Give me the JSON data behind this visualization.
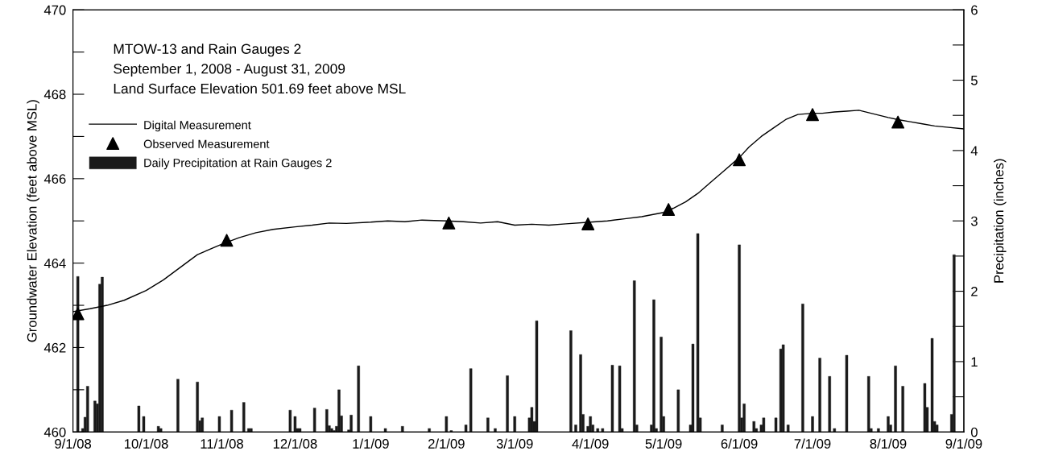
{
  "chart_data": {
    "type": "line",
    "ylabel": "Groundwater Elevation (feet above MSL)",
    "y2label": "Precipitation (inches)",
    "annotations": [
      "MTOW-13 and Rain Gauges 2",
      "September 1, 2008 - August 31, 2009",
      "Land Surface Elevation 501.69 feet above MSL"
    ],
    "xlim": [
      "2008-09-01",
      "2009-09-01"
    ],
    "xticks": [
      {
        "value": "2008-09-01",
        "label": "9/1/08"
      },
      {
        "value": "2008-10-01",
        "label": "10/1/08"
      },
      {
        "value": "2008-11-01",
        "label": "11/1/08"
      },
      {
        "value": "2008-12-01",
        "label": "12/1/08"
      },
      {
        "value": "2009-01-01",
        "label": "1/1/09"
      },
      {
        "value": "2009-02-01",
        "label": "2/1/09"
      },
      {
        "value": "2009-03-01",
        "label": "3/1/09"
      },
      {
        "value": "2009-04-01",
        "label": "4/1/09"
      },
      {
        "value": "2009-05-01",
        "label": "5/1/09"
      },
      {
        "value": "2009-06-01",
        "label": "6/1/09"
      },
      {
        "value": "2009-07-01",
        "label": "7/1/09"
      },
      {
        "value": "2009-08-01",
        "label": "8/1/09"
      },
      {
        "value": "2009-09-01",
        "label": "9/1/09"
      }
    ],
    "ylim": [
      460,
      470
    ],
    "yticks": [
      460,
      {
        "value": 461,
        "label": null
      },
      462,
      {
        "value": 463,
        "label": null
      },
      464,
      {
        "value": 465,
        "label": null
      },
      466,
      {
        "value": 467,
        "label": null
      },
      468,
      {
        "value": 469,
        "label": null
      },
      470
    ],
    "y2lim": [
      0,
      6
    ],
    "y2ticks": [
      0,
      {
        "value": 0.5,
        "label": null
      },
      1,
      {
        "value": 1.5,
        "label": null
      },
      2,
      {
        "value": 2.5,
        "label": null
      },
      3,
      {
        "value": 3.5,
        "label": null
      },
      4,
      {
        "value": 4.5,
        "label": null
      },
      5,
      {
        "value": 5.5,
        "label": null
      },
      6
    ],
    "grid": false,
    "legend": "top left",
    "series": [
      {
        "name": "Digital Measurement",
        "type": "line",
        "color": "#000000",
        "marker": "none",
        "line_style": "solid",
        "x": [
          "2008-09-01",
          "2008-09-08",
          "2008-09-15",
          "2008-09-22",
          "2008-10-01",
          "2008-10-08",
          "2008-10-15",
          "2008-10-22",
          "2008-11-01",
          "2008-11-08",
          "2008-11-15",
          "2008-11-22",
          "2008-12-01",
          "2008-12-08",
          "2008-12-15",
          "2008-12-22",
          "2009-01-01",
          "2009-01-08",
          "2009-01-15",
          "2009-01-22",
          "2009-02-01",
          "2009-02-08",
          "2009-02-15",
          "2009-02-22",
          "2009-03-01",
          "2009-03-08",
          "2009-03-15",
          "2009-03-22",
          "2009-04-01",
          "2009-04-08",
          "2009-04-15",
          "2009-04-22",
          "2009-05-01",
          "2009-05-05",
          "2009-05-10",
          "2009-05-15",
          "2009-05-20",
          "2009-05-25",
          "2009-06-01",
          "2009-06-05",
          "2009-06-10",
          "2009-06-15",
          "2009-06-20",
          "2009-06-25",
          "2009-07-01",
          "2009-07-05",
          "2009-07-10",
          "2009-07-15",
          "2009-07-20",
          "2009-07-25",
          "2009-08-01",
          "2009-08-05",
          "2009-08-10",
          "2009-08-15",
          "2009-08-20",
          "2009-08-25",
          "2009-09-01"
        ],
        "values": [
          462.85,
          462.92,
          463.0,
          463.12,
          463.35,
          463.6,
          463.9,
          464.2,
          464.45,
          464.6,
          464.72,
          464.8,
          464.86,
          464.9,
          464.95,
          464.94,
          464.97,
          465.0,
          464.98,
          465.02,
          465.0,
          464.98,
          464.95,
          464.98,
          464.9,
          464.92,
          464.9,
          464.93,
          464.97,
          465.0,
          465.05,
          465.1,
          465.2,
          465.3,
          465.45,
          465.65,
          465.9,
          466.15,
          466.5,
          466.75,
          467.0,
          467.2,
          467.4,
          467.52,
          467.55,
          467.55,
          467.58,
          467.6,
          467.62,
          467.55,
          467.45,
          467.4,
          467.35,
          467.3,
          467.25,
          467.22,
          467.18
        ]
      },
      {
        "name": "Observed Measurement",
        "type": "scatter",
        "color": "#000000",
        "marker": "triangle",
        "x": [
          "2008-09-03",
          "2008-11-03",
          "2009-02-02",
          "2009-03-31",
          "2009-05-03",
          "2009-06-01",
          "2009-07-01",
          "2009-08-05"
        ],
        "values": [
          462.8,
          464.54,
          464.95,
          464.93,
          465.27,
          466.45,
          467.52,
          467.34
        ]
      },
      {
        "name": "Daily Precipitation at Rain Gauges 2",
        "type": "bar",
        "axis": "y2",
        "color": "#1a1a1a",
        "x": [
          "2008-09-03",
          "2008-09-05",
          "2008-09-06",
          "2008-09-07",
          "2008-09-10",
          "2008-09-11",
          "2008-09-12",
          "2008-09-13",
          "2008-09-28",
          "2008-09-30",
          "2008-10-06",
          "2008-10-07",
          "2008-10-14",
          "2008-10-22",
          "2008-10-23",
          "2008-10-24",
          "2008-10-31",
          "2008-11-05",
          "2008-11-10",
          "2008-11-12",
          "2008-11-13",
          "2008-11-29",
          "2008-12-01",
          "2008-12-02",
          "2008-12-03",
          "2008-12-09",
          "2008-12-14",
          "2008-12-15",
          "2008-12-16",
          "2008-12-17",
          "2008-12-18",
          "2008-12-19",
          "2008-12-20",
          "2008-12-23",
          "2008-12-24",
          "2008-12-27",
          "2009-01-01",
          "2009-01-07",
          "2009-01-14",
          "2009-01-25",
          "2009-02-01",
          "2009-02-03",
          "2009-02-09",
          "2009-02-11",
          "2009-02-18",
          "2009-02-21",
          "2009-02-26",
          "2009-03-01",
          "2009-03-07",
          "2009-03-08",
          "2009-03-09",
          "2009-03-10",
          "2009-03-24",
          "2009-03-26",
          "2009-03-28",
          "2009-03-29",
          "2009-03-31",
          "2009-04-01",
          "2009-04-02",
          "2009-04-04",
          "2009-04-06",
          "2009-04-10",
          "2009-04-13",
          "2009-04-14",
          "2009-04-19",
          "2009-04-20",
          "2009-04-26",
          "2009-04-27",
          "2009-04-28",
          "2009-04-30",
          "2009-05-01",
          "2009-05-07",
          "2009-05-12",
          "2009-05-13",
          "2009-05-15",
          "2009-05-16",
          "2009-05-25",
          "2009-06-01",
          "2009-06-02",
          "2009-06-03",
          "2009-06-07",
          "2009-06-08",
          "2009-06-10",
          "2009-06-11",
          "2009-06-16",
          "2009-06-18",
          "2009-06-19",
          "2009-06-21",
          "2009-06-27",
          "2009-07-01",
          "2009-07-04",
          "2009-07-08",
          "2009-07-10",
          "2009-07-15",
          "2009-07-24",
          "2009-07-25",
          "2009-07-28",
          "2009-08-01",
          "2009-08-02",
          "2009-08-04",
          "2009-08-07",
          "2009-08-16",
          "2009-08-17",
          "2009-08-19",
          "2009-08-20",
          "2009-08-21",
          "2009-08-27",
          "2009-08-28"
        ],
        "values": [
          2.21,
          0.05,
          0.21,
          0.65,
          0.44,
          0.4,
          2.1,
          2.2,
          0.37,
          0.22,
          0.08,
          0.05,
          0.75,
          0.71,
          0.16,
          0.2,
          0.22,
          0.31,
          0.42,
          0.05,
          0.05,
          0.31,
          0.22,
          0.05,
          0.05,
          0.34,
          0.32,
          0.09,
          0.05,
          0.02,
          0.08,
          0.6,
          0.23,
          0.03,
          0.24,
          0.94,
          0.22,
          0.05,
          0.08,
          0.05,
          0.22,
          0.02,
          0.1,
          0.9,
          0.2,
          0.05,
          0.8,
          0.22,
          0.2,
          0.35,
          0.15,
          1.58,
          1.44,
          0.1,
          1.1,
          0.25,
          0.08,
          0.22,
          0.1,
          0.05,
          0.05,
          0.95,
          0.94,
          0.05,
          2.15,
          0.1,
          0.1,
          1.88,
          0.05,
          1.35,
          0.22,
          0.6,
          0.1,
          1.25,
          2.82,
          0.2,
          0.1,
          2.66,
          0.2,
          0.4,
          0.15,
          0.05,
          0.1,
          0.2,
          0.2,
          1.18,
          1.24,
          0.1,
          1.82,
          0.22,
          1.05,
          0.79,
          0.05,
          1.09,
          0.79,
          0.05,
          0.05,
          0.22,
          0.1,
          0.94,
          0.65,
          0.69,
          0.35,
          1.33,
          0.15,
          0.1,
          0.25,
          2.52
        ]
      }
    ]
  }
}
